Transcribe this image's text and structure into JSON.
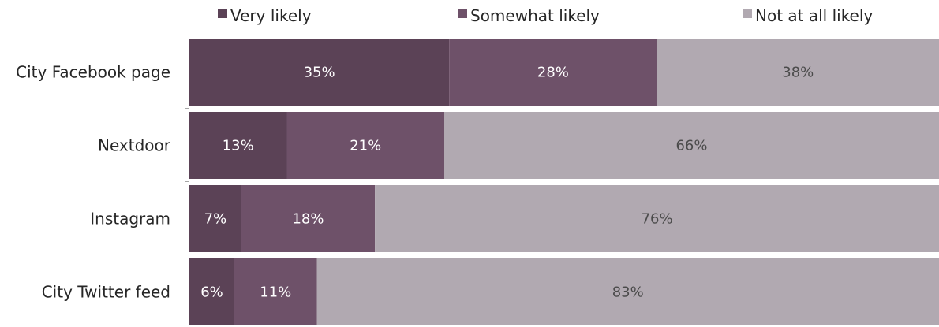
{
  "chart_data": {
    "type": "bar",
    "orientation": "horizontal",
    "stacked": true,
    "percent_stacked": true,
    "categories": [
      "City Facebook page",
      "Nextdoor",
      "Instagram",
      "City Twitter feed"
    ],
    "series": [
      {
        "name": "Very likely",
        "values": [
          35,
          13,
          7,
          6
        ],
        "labels": [
          "35%",
          "13%",
          "7%",
          "6%"
        ],
        "color": "#5b4256"
      },
      {
        "name": "Somewhat likely",
        "values": [
          28,
          21,
          18,
          11
        ],
        "labels": [
          "28%",
          "21%",
          "18%",
          "11%"
        ],
        "color": "#6e5169"
      },
      {
        "name": "Not at all likely",
        "values": [
          38,
          66,
          76,
          83
        ],
        "labels": [
          "38%",
          "66%",
          "76%",
          "83%"
        ],
        "color": "#b1a9b1"
      }
    ],
    "label_colors": [
      "#ffffff",
      "#ffffff",
      "#4a4a4a"
    ],
    "legend_position": "top",
    "grid": false
  }
}
